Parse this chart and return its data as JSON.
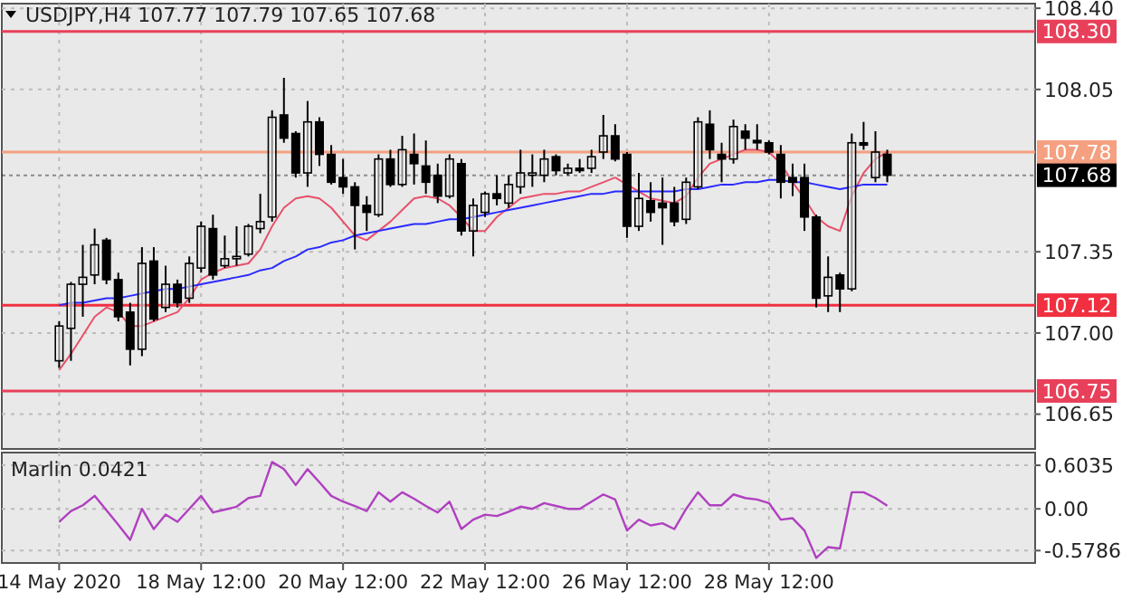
{
  "chart_data": [
    {
      "type": "candlestick",
      "title": "USDJPY,H4 107.77 107.79 107.65 107.68",
      "categories": [
        null,
        null,
        null,
        null,
        null,
        null,
        null,
        null,
        null,
        null,
        null,
        null,
        null,
        null,
        null,
        null,
        null,
        null,
        null,
        null,
        null,
        null,
        null,
        null,
        null,
        null,
        null,
        null,
        null,
        null,
        null,
        null,
        null,
        null,
        null,
        null,
        null,
        null,
        null,
        null,
        null,
        null,
        null,
        null,
        null,
        null,
        null,
        null,
        null,
        null,
        null,
        null,
        null,
        null,
        null,
        null,
        null,
        null,
        null,
        null,
        null,
        null,
        null,
        null,
        null,
        null,
        null,
        null,
        null,
        null,
        null
      ],
      "ohlc": [
        [
          106.88,
          107.05,
          106.85,
          107.03
        ],
        [
          107.02,
          107.22,
          106.88,
          107.21
        ],
        [
          107.21,
          107.38,
          107.07,
          107.24
        ],
        [
          107.25,
          107.45,
          107.21,
          107.38
        ],
        [
          107.4,
          107.41,
          107.21,
          107.23
        ],
        [
          107.23,
          107.26,
          107.05,
          107.07
        ],
        [
          107.09,
          107.13,
          106.86,
          106.93
        ],
        [
          106.93,
          107.37,
          106.9,
          107.3
        ],
        [
          107.31,
          107.37,
          107.05,
          107.06
        ],
        [
          107.11,
          107.29,
          107.09,
          107.21
        ],
        [
          107.21,
          107.23,
          107.11,
          107.13
        ],
        [
          107.15,
          107.33,
          107.13,
          107.3
        ],
        [
          107.28,
          107.48,
          107.26,
          107.46
        ],
        [
          107.45,
          107.51,
          107.23,
          107.25
        ],
        [
          107.29,
          107.42,
          107.28,
          107.32
        ],
        [
          107.32,
          107.46,
          107.29,
          107.33
        ],
        [
          107.34,
          107.47,
          107.33,
          107.46
        ],
        [
          107.45,
          107.6,
          107.43,
          107.48
        ],
        [
          107.5,
          107.96,
          107.48,
          107.93
        ],
        [
          107.94,
          108.1,
          107.82,
          107.84
        ],
        [
          107.86,
          107.87,
          107.67,
          107.69
        ],
        [
          107.69,
          108.0,
          107.63,
          107.91
        ],
        [
          107.91,
          107.93,
          107.72,
          107.77
        ],
        [
          107.77,
          107.81,
          107.64,
          107.65
        ],
        [
          107.67,
          107.75,
          107.6,
          107.63
        ],
        [
          107.63,
          107.65,
          107.36,
          107.55
        ],
        [
          107.55,
          107.59,
          107.44,
          107.52
        ],
        [
          107.51,
          107.77,
          107.5,
          107.75
        ],
        [
          107.75,
          107.79,
          107.63,
          107.64
        ],
        [
          107.64,
          107.85,
          107.63,
          107.79
        ],
        [
          107.77,
          107.86,
          107.64,
          107.73
        ],
        [
          107.72,
          107.83,
          107.6,
          107.65
        ],
        [
          107.68,
          107.73,
          107.56,
          107.59
        ],
        [
          107.59,
          107.77,
          107.58,
          107.75
        ],
        [
          107.73,
          107.75,
          107.42,
          107.44
        ],
        [
          107.44,
          107.58,
          107.33,
          107.55
        ],
        [
          107.52,
          107.61,
          107.5,
          107.6
        ],
        [
          107.6,
          107.68,
          107.55,
          107.58
        ],
        [
          107.56,
          107.68,
          107.54,
          107.64
        ],
        [
          107.63,
          107.79,
          107.6,
          107.69
        ],
        [
          107.68,
          107.77,
          107.63,
          107.69
        ],
        [
          107.68,
          107.79,
          107.65,
          107.75
        ],
        [
          107.76,
          107.77,
          107.68,
          107.7
        ],
        [
          107.69,
          107.73,
          107.68,
          107.71
        ],
        [
          107.71,
          107.75,
          107.69,
          107.7
        ],
        [
          107.71,
          107.79,
          107.69,
          107.76
        ],
        [
          107.78,
          107.94,
          107.75,
          107.85
        ],
        [
          107.85,
          107.9,
          107.74,
          107.75
        ],
        [
          107.77,
          107.78,
          107.41,
          107.46
        ],
        [
          107.46,
          107.69,
          107.44,
          107.58
        ],
        [
          107.57,
          107.65,
          107.48,
          107.52
        ],
        [
          107.56,
          107.67,
          107.38,
          107.54
        ],
        [
          107.56,
          107.63,
          107.46,
          107.48
        ],
        [
          107.49,
          107.67,
          107.47,
          107.65
        ],
        [
          107.63,
          107.93,
          107.62,
          107.91
        ],
        [
          107.9,
          107.96,
          107.75,
          107.79
        ],
        [
          107.77,
          107.82,
          107.65,
          107.75
        ],
        [
          107.75,
          107.92,
          107.73,
          107.89
        ],
        [
          107.87,
          107.9,
          107.79,
          107.84
        ],
        [
          107.83,
          107.9,
          107.79,
          107.82
        ],
        [
          107.82,
          107.83,
          107.77,
          107.78
        ],
        [
          107.77,
          107.81,
          107.58,
          107.65
        ],
        [
          107.67,
          107.73,
          107.59,
          107.65
        ],
        [
          107.67,
          107.73,
          107.44,
          107.5
        ],
        [
          107.5,
          107.51,
          107.11,
          107.15
        ],
        [
          107.16,
          107.33,
          107.09,
          107.24
        ],
        [
          107.25,
          107.26,
          107.09,
          107.19
        ],
        [
          107.19,
          107.86,
          107.18,
          107.82
        ],
        [
          107.82,
          107.91,
          107.79,
          107.81
        ],
        [
          107.67,
          107.87,
          107.65,
          107.78
        ],
        [
          107.77,
          107.79,
          107.65,
          107.68
        ]
      ],
      "series": [
        {
          "type": "line",
          "color": "#e8506a",
          "values": [
            106.84,
            106.91,
            106.99,
            107.07,
            107.11,
            107.09,
            107.03,
            107.03,
            107.05,
            107.07,
            107.09,
            107.15,
            107.23,
            107.26,
            107.28,
            107.29,
            107.3,
            107.36,
            107.46,
            107.54,
            107.58,
            107.59,
            107.58,
            107.54,
            107.48,
            107.42,
            107.4,
            107.44,
            107.48,
            107.53,
            107.58,
            107.59,
            107.58,
            107.55,
            107.5,
            107.44,
            107.44,
            107.5,
            107.54,
            107.58,
            107.59,
            107.6,
            107.6,
            107.61,
            107.61,
            107.63,
            107.65,
            107.67,
            107.64,
            107.61,
            107.58,
            107.57,
            107.56,
            107.59,
            107.67,
            107.73,
            107.75,
            107.77,
            107.79,
            107.79,
            107.78,
            107.73,
            107.65,
            107.58,
            107.5,
            107.46,
            107.44,
            107.59,
            107.69,
            107.75,
            107.78
          ]
        },
        {
          "type": "line",
          "color": "#2a2aff",
          "values": [
            107.12,
            107.13,
            107.13,
            107.14,
            107.15,
            107.15,
            107.16,
            107.17,
            107.18,
            107.19,
            107.19,
            107.2,
            107.21,
            107.22,
            107.23,
            107.24,
            107.25,
            107.27,
            107.28,
            107.31,
            107.33,
            107.36,
            107.37,
            107.39,
            107.4,
            107.42,
            107.43,
            107.44,
            107.45,
            107.46,
            107.47,
            107.47,
            107.48,
            107.49,
            107.49,
            107.5,
            107.51,
            107.52,
            107.53,
            107.54,
            107.55,
            107.56,
            107.57,
            107.58,
            107.59,
            107.6,
            107.6,
            107.61,
            107.61,
            107.61,
            107.61,
            107.61,
            107.61,
            107.62,
            107.62,
            107.63,
            107.64,
            107.64,
            107.65,
            107.65,
            107.66,
            107.66,
            107.65,
            107.65,
            107.64,
            107.63,
            107.62,
            107.63,
            107.64,
            107.64,
            107.64
          ]
        }
      ],
      "ylim": [
        106.5,
        108.42
      ],
      "yticks": [
        {
          "value": 108.4,
          "label": "108.40"
        },
        {
          "value": 108.05,
          "label": "108.05"
        },
        {
          "value": 107.35,
          "label": "107.35"
        },
        {
          "value": 107.0,
          "label": "107.00"
        },
        {
          "value": 106.65,
          "label": "106.65"
        }
      ],
      "ref_lines": [
        {
          "axis": "y",
          "value": 108.3,
          "label": "108.30",
          "color": "#e8405a"
        },
        {
          "axis": "y",
          "value": 107.78,
          "label": "107.78",
          "color": "#f5a080"
        },
        {
          "axis": "y",
          "value": 107.68,
          "label": "107.68",
          "color": "#000000",
          "line_style": "dotted"
        },
        {
          "axis": "y",
          "value": 107.12,
          "label": "107.12",
          "color": "#f03040"
        },
        {
          "axis": "y",
          "value": 106.75,
          "label": "106.75",
          "color": "#e8405a"
        }
      ],
      "grid": true,
      "tick_labels": "y"
    },
    {
      "type": "line",
      "title": "Marlin 0.0421",
      "categories": [
        "14 May 2020",
        null,
        null,
        null,
        null,
        null,
        null,
        null,
        null,
        null,
        null,
        null,
        "18 May 12:00",
        null,
        null,
        null,
        null,
        null,
        null,
        null,
        null,
        null,
        null,
        null,
        "20 May 12:00",
        null,
        null,
        null,
        null,
        null,
        null,
        null,
        null,
        null,
        null,
        null,
        "22 May 12:00",
        null,
        null,
        null,
        null,
        null,
        null,
        null,
        null,
        null,
        null,
        null,
        "26 May 12:00",
        null,
        null,
        null,
        null,
        null,
        null,
        null,
        null,
        null,
        null,
        null,
        "28 May 12:00",
        null,
        null,
        null,
        null,
        null,
        null,
        null,
        null,
        null,
        null
      ],
      "series": [
        {
          "color": "#b040c0",
          "values": [
            -0.18,
            -0.03,
            0.05,
            0.18,
            -0.02,
            -0.22,
            -0.43,
            0.0,
            -0.28,
            -0.08,
            -0.18,
            0.0,
            0.18,
            -0.05,
            -0.01,
            0.03,
            0.15,
            0.18,
            0.65,
            0.55,
            0.33,
            0.55,
            0.37,
            0.18,
            0.1,
            0.04,
            -0.03,
            0.23,
            0.1,
            0.23,
            0.14,
            0.04,
            -0.05,
            0.1,
            -0.28,
            -0.15,
            -0.08,
            -0.1,
            -0.04,
            0.03,
            0.0,
            0.08,
            0.04,
            0.0,
            0.0,
            0.1,
            0.2,
            0.13,
            -0.3,
            -0.15,
            -0.23,
            -0.2,
            -0.28,
            0.0,
            0.23,
            0.05,
            0.05,
            0.2,
            0.15,
            0.13,
            0.08,
            -0.15,
            -0.13,
            -0.3,
            -0.68,
            -0.53,
            -0.55,
            0.23,
            0.23,
            0.15,
            0.0421
          ]
        }
      ],
      "ylim": [
        -0.75,
        0.78
      ],
      "yticks": [
        0.6035,
        {
          "value": 0,
          "label": "0.00"
        },
        -0.5786
      ],
      "grid": true
    }
  ]
}
